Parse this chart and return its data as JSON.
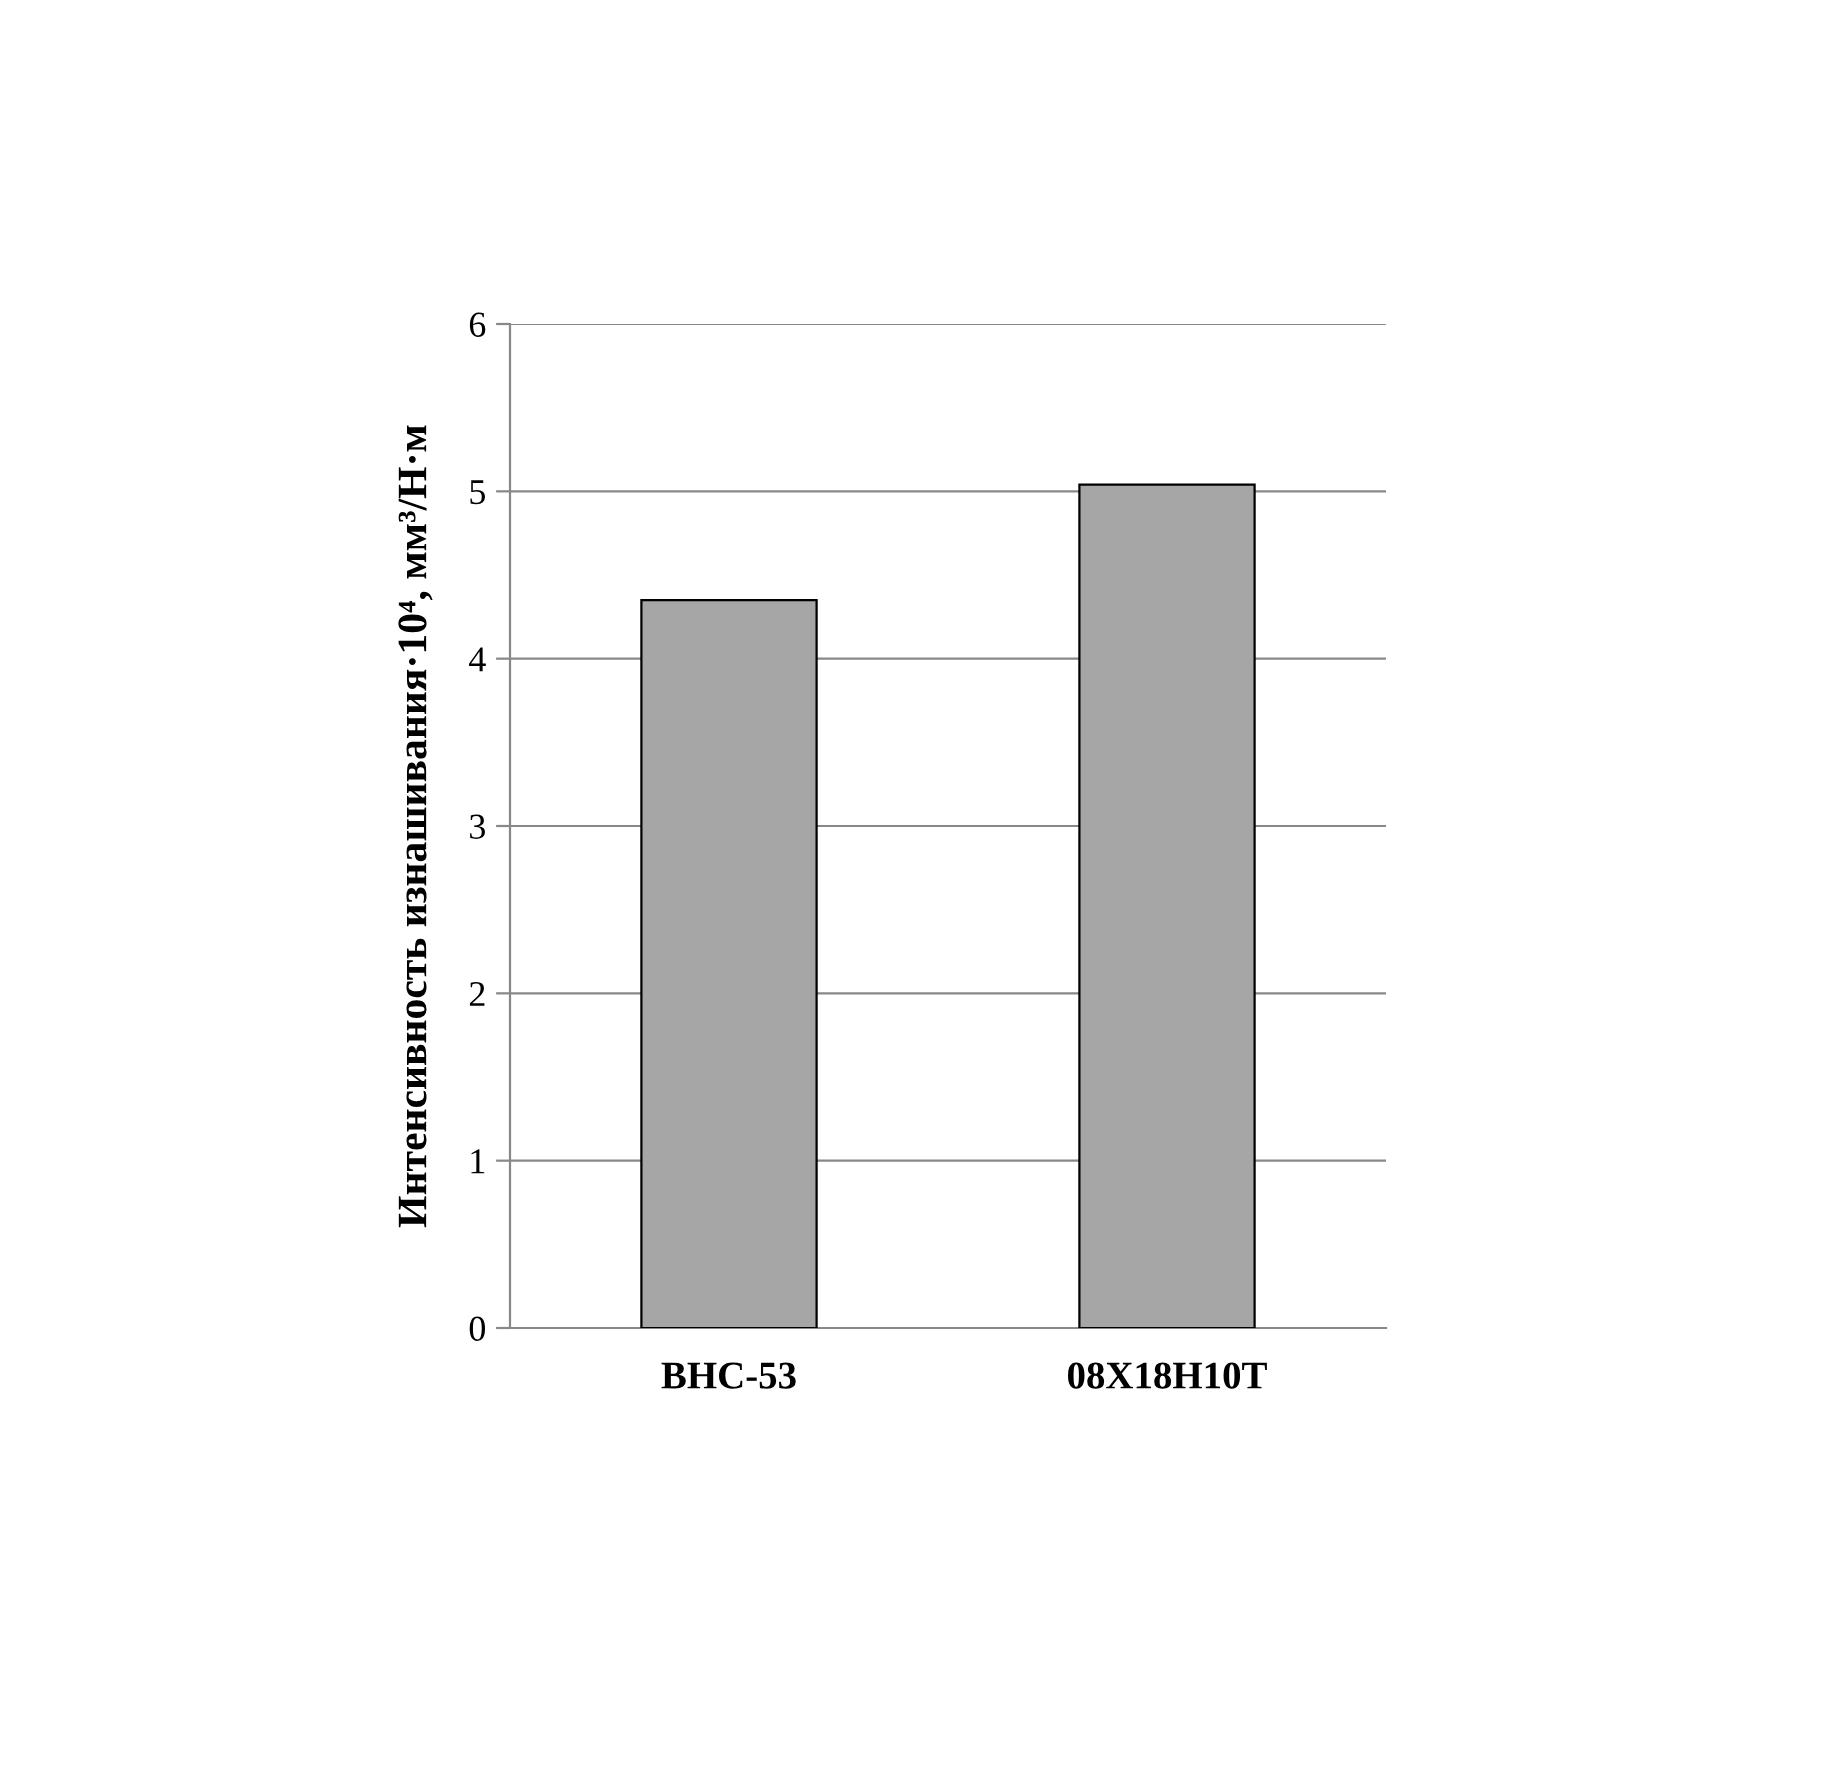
{
  "chart_data": {
    "type": "bar",
    "ylabel": "Интенсивность изнашивания·10⁴, мм³/Н·м",
    "categories": [
      "ВНС-53",
      "08Х18Н10Т"
    ],
    "values": [
      4.35,
      5.04
    ],
    "color": "#a6a6a6",
    "ylim": [
      0,
      6
    ],
    "yticks": [
      0,
      1,
      2,
      3,
      4,
      5,
      6
    ],
    "grid": "y",
    "legend": false
  }
}
